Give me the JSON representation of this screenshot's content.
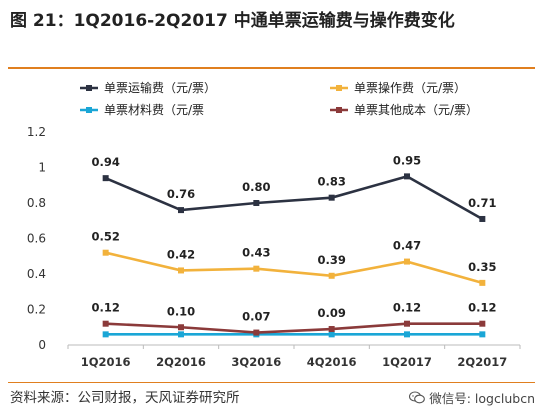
{
  "title": "图 21：1Q2016-2Q2017 中通单票运输费与操作费变化",
  "source": "资料来源：公司财报，天风证券研究所",
  "watermark": {
    "text": "微信号: logclubcn",
    "icon": "wechat-icon"
  },
  "colors": {
    "accent": "#e07f1f"
  },
  "chart_data": {
    "type": "line",
    "title": "",
    "xlabel": "",
    "ylabel": "",
    "x": [
      "1Q2016",
      "2Q2016",
      "3Q2016",
      "4Q2016",
      "1Q2017",
      "2Q2017"
    ],
    "ylim": [
      0,
      1.2
    ],
    "yticks": [
      0,
      0.2,
      0.4,
      0.6,
      0.8,
      1,
      1.2
    ],
    "ytick_labels": [
      "0",
      "0.2",
      "0.4",
      "0.6",
      "0.8",
      "1",
      "1.2"
    ],
    "grid": false,
    "legend": "top",
    "series": [
      {
        "name": "单票运输费（元/票）",
        "color": "#2c3242",
        "values": [
          0.94,
          0.76,
          0.8,
          0.83,
          0.95,
          0.71
        ],
        "labels": [
          "0.94",
          "0.76",
          "0.80",
          "0.83",
          "0.95",
          "0.71"
        ]
      },
      {
        "name": "单票操作费（元/票）",
        "color": "#f2b23c",
        "values": [
          0.52,
          0.42,
          0.43,
          0.39,
          0.47,
          0.35
        ],
        "labels": [
          "0.52",
          "0.42",
          "0.43",
          "0.39",
          "0.47",
          "0.35"
        ]
      },
      {
        "name": "单票材料费（元/票",
        "color": "#1aa6d6",
        "values": [
          0.06,
          0.06,
          0.06,
          0.06,
          0.06,
          0.06
        ]
      },
      {
        "name": "单票其他成本（元/票）",
        "color": "#8b3a3a",
        "values": [
          0.12,
          0.1,
          0.07,
          0.09,
          0.12,
          0.12
        ],
        "labels": [
          "0.12",
          "0.10",
          "0.07",
          "0.09",
          "0.12",
          "0.12"
        ]
      }
    ]
  }
}
